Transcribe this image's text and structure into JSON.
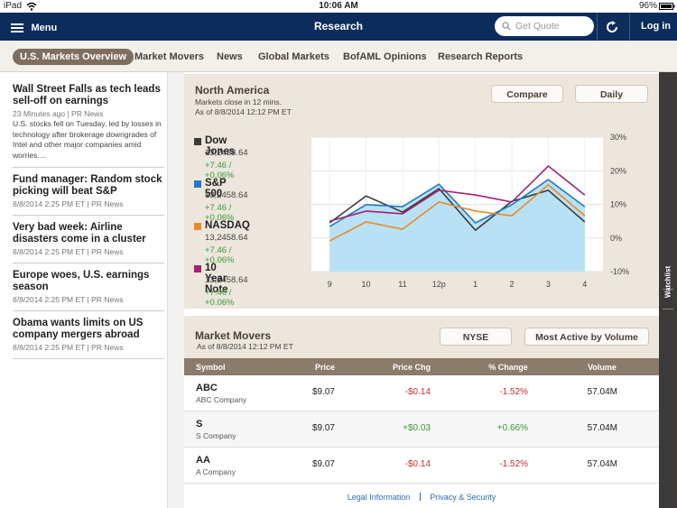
{
  "status_bar": {
    "carrier": "iPad",
    "time": "10:06 AM",
    "battery": "96%"
  },
  "nav": {
    "menu": "Menu",
    "title": "Research",
    "search_placeholder": "Get Quote",
    "login": "Log in"
  },
  "tabs": {
    "items": [
      "U.S. Markets Overview",
      "Market Movers",
      "News",
      "Global Markets",
      "BofAML Opinions",
      "Research Reports"
    ],
    "selected": 0
  },
  "news": [
    {
      "headline": "Wall Street Falls as tech leads sell-off on earnings",
      "meta": "23 Minutes ago  |  PR News",
      "summary": "U.S. stocks fell on Tuesday, led by losses in technology after brokerage downgrades of Intel and other major companies amid worries...."
    },
    {
      "headline": "Fund manager: Random stock picking will beat S&P",
      "meta": "8/8/2014 2:25 PM ET | PR News"
    },
    {
      "headline": "Very bad week: Airline disasters come in a cluster",
      "meta": "8/8/2014 2:25 PM ET | PR News"
    },
    {
      "headline": "Europe woes, U.S. earnings season",
      "meta": "8/8/2014 2:25 PM ET | PR News"
    },
    {
      "headline": "Obama wants limits on US company mergers abroad",
      "meta": "8/8/2014 2:25 PM ET | PR News"
    }
  ],
  "north_america": {
    "title": "North America",
    "subtitle": "Markets close in 12 mins.",
    "as_of": "As of 8/8/2014 12:12 PM ET",
    "buttons": [
      "Compare",
      "Daily"
    ],
    "quotes": [
      {
        "price": "13,2458.64",
        "change": "+7.46 / +0.06%"
      },
      {
        "price": "13,2458.64",
        "change": "+7.46 / +0.06%"
      },
      {
        "price": "13,2458.64",
        "change": "+7.46 / +0.06%"
      },
      {
        "price": "13,2458.64",
        "change": "+7.46 / +0.06%"
      }
    ],
    "chart_data": {
      "type": "line",
      "categories": [
        "9",
        "10",
        "11",
        "12p",
        "1",
        "2",
        "3",
        "4"
      ],
      "series": [
        {
          "name": "Dow Jones",
          "color": "#3b3b3b",
          "values": [
            4.5,
            12.5,
            7.7,
            14.7,
            2.3,
            10.9,
            14.2,
            4.8
          ]
        },
        {
          "name": "S&P 500",
          "color": "#1f7bc6",
          "area": true,
          "area_color": "#b9e1f6",
          "values": [
            3.4,
            9.9,
            9.3,
            16,
            4.5,
            9.9,
            17.4,
            9.3
          ]
        },
        {
          "name": "NASDAQ",
          "color": "#e8892a",
          "values": [
            -0.9,
            4.8,
            2.6,
            10.7,
            8,
            6.6,
            15.8,
            6.6
          ]
        },
        {
          "name": "10 Year Note",
          "color": "#a2236f",
          "values": [
            5,
            8,
            7.2,
            14.2,
            12.8,
            10.7,
            21.4,
            12.8
          ]
        }
      ],
      "ylim": [
        -10,
        30
      ],
      "yticks": [
        {
          "value": 30,
          "label": "30%"
        },
        {
          "value": 20,
          "label": "20%"
        },
        {
          "value": 10,
          "label": "10%"
        },
        {
          "value": 0,
          "label": "0%"
        },
        {
          "value": -10,
          "label": "-10%"
        }
      ],
      "grid": true
    }
  },
  "market_movers": {
    "title": "Market Movers",
    "as_of": "As of 8/8/2014 12:12 PM ET",
    "buttons": [
      "NYSE",
      "Most Active by Volume"
    ],
    "columns": [
      "Symbol",
      "Price",
      "Price Chg",
      "% Change",
      "Volume"
    ],
    "rows": [
      {
        "symbol": "ABC",
        "company": "ABC Company",
        "price": "$9.07",
        "change": "-$0.14",
        "pct": "-1.52%",
        "volume": "57.04M"
      },
      {
        "symbol": "S",
        "company": "S Company",
        "price": "$9.07",
        "change": "+$0.03",
        "pct": "+0.66%",
        "volume": "57.04M"
      },
      {
        "symbol": "AA",
        "company": "A Company",
        "price": "$9.07",
        "change": "-$0.14",
        "pct": "-1.52%",
        "volume": "57.04M"
      }
    ]
  },
  "watchlist": "Watchlist",
  "footer": [
    "Legal Information",
    "Privacy & Security"
  ]
}
